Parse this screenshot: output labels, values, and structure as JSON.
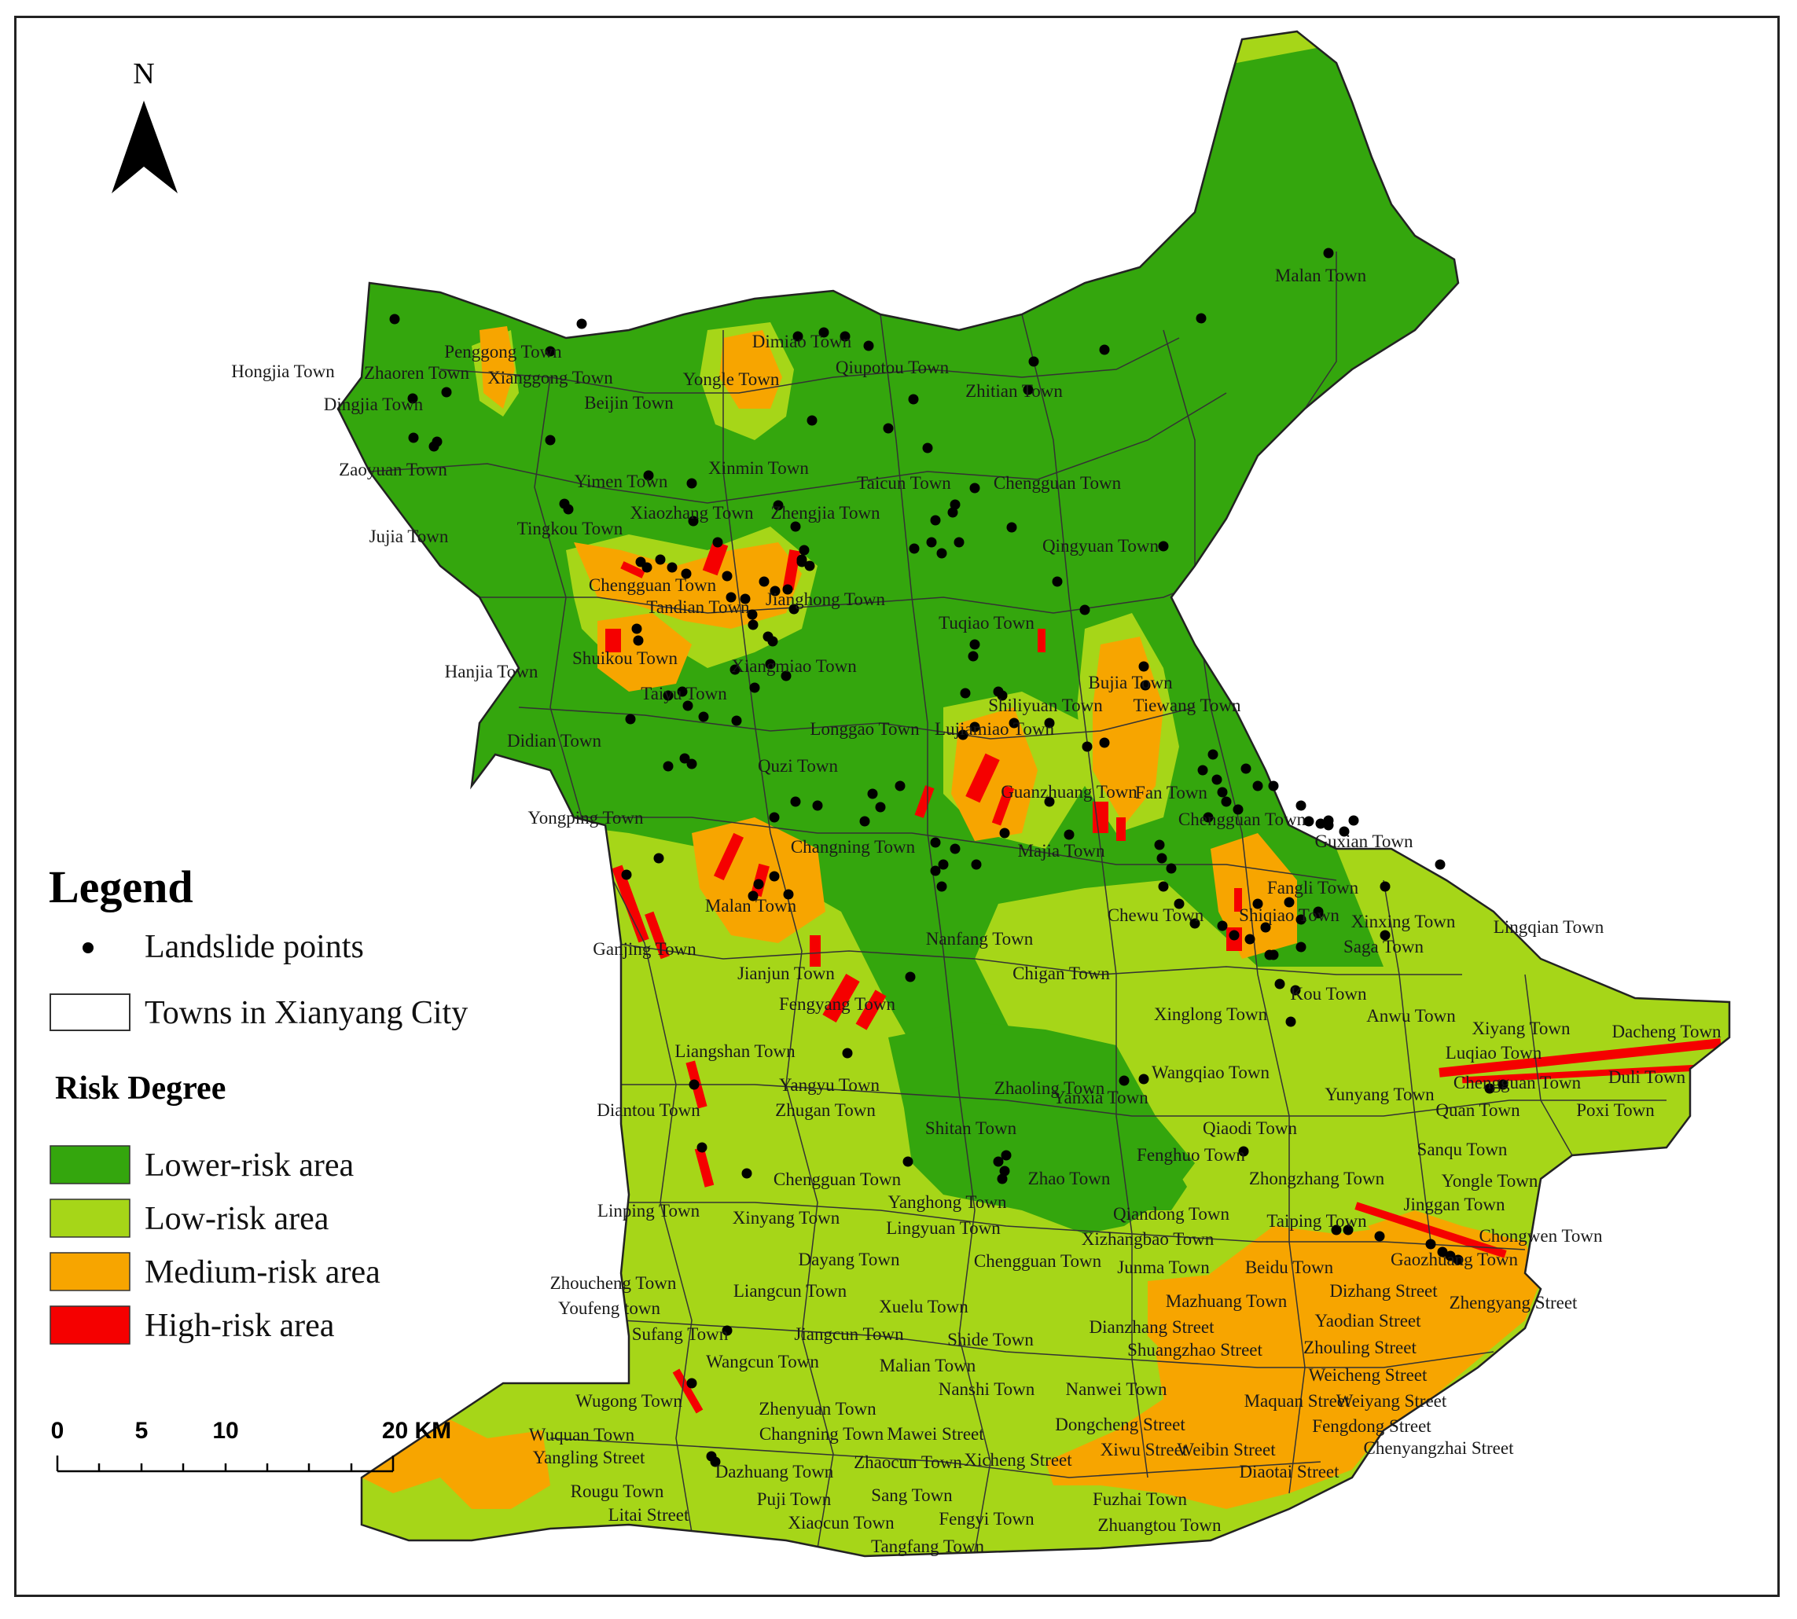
{
  "colors": {
    "lower_risk": "#34a60d",
    "low_risk": "#a6d618",
    "medium_risk": "#f7a500",
    "high_risk": "#f50000",
    "boundary": "#333333",
    "landslide": "#000000"
  },
  "north_arrow": {
    "label": "N",
    "icon": "north-arrow-icon"
  },
  "legend": {
    "title": "Legend",
    "landslide_label": "Landslide points",
    "towns_label": "Towns in Xianyang City",
    "risk_title": "Risk Degree",
    "items": [
      {
        "label": "Lower-risk area",
        "color": "#34a60d"
      },
      {
        "label": "Low-risk area",
        "color": "#a6d618"
      },
      {
        "label": "Medium-risk area",
        "color": "#f7a500"
      },
      {
        "label": "High-risk area",
        "color": "#f50000"
      }
    ]
  },
  "scale_bar": {
    "labels": [
      "0",
      "5",
      "10",
      "20 KM"
    ]
  },
  "towns": [
    "Malan Town",
    "Penggong Town",
    "Hongjia Town",
    "Zhaoren Town",
    "Xianggong Town",
    "Dingjia Town",
    "Dimiao Town",
    "Yongle Town",
    "Qiupotou Town",
    "Beijin Town",
    "Zhitian Town",
    "Zaoyuan Town",
    "Yimen Town",
    "Xinmin Town",
    "Taicun Town",
    "Chengguan Town",
    "Jujia Town",
    "Tingkou Town",
    "Xiaozhang Town",
    "Zhengjia Town",
    "Qingyuan Town",
    "Chengguan Town",
    "Jianghong Town",
    "Tandian Town",
    "Tuqiao Town",
    "Shuikou Town",
    "Xiangmiao Town",
    "Hanjia Town",
    "Taiyu Town",
    "Bujia Town",
    "Shiliyuan Town",
    "Tiewang Town",
    "Didian Town",
    "Longgao Town",
    "Lujiamiao Town",
    "Quzi Town",
    "Guanzhuang Town",
    "Fan Town",
    "Yongping Town",
    "Chengguan Town",
    "Guxian Town",
    "Changning Town",
    "Majia Town",
    "Fangli Town",
    "Malan Town",
    "Chewu Town",
    "Shiqiao Town",
    "Xinxing Town",
    "Lingqian Town",
    "Ganjing Town",
    "Nanfang Town",
    "Saga Town",
    "Jianjun Town",
    "Chigan Town",
    "Kou Town",
    "Fengyang Town",
    "Xinglong Town",
    "Anwu Town",
    "Xiyang Town",
    "Dacheng Town",
    "Liangshan Town",
    "Luqiao Town",
    "Yangyu Town",
    "Zhaoling Town",
    "Wangqiao Town",
    "Chengguan Town",
    "Duli Town",
    "Diantou Town",
    "Zhugan Town",
    "Yanxia Town",
    "Yunyang Town",
    "Quan Town",
    "Poxi Town",
    "Shitan Town",
    "Qiaodi Town",
    "Sanqu Town",
    "Fenghuo Town",
    "Chengguan Town",
    "Zhao Town",
    "Zhongzhang Town",
    "Yongle Town",
    "Linping Town",
    "Yanghong Town",
    "Qiandong Town",
    "Jinggan Town",
    "Xinyang Town",
    "Lingyuan Town",
    "Taiping Town",
    "Xizhangbao Town",
    "Chongwen Town",
    "Dayang Town",
    "Chengguan Town",
    "Junma Town",
    "Beidu Town",
    "Gaozhuang Town",
    "Zhoucheng Town",
    "Liangcun Town",
    "Youfeng town",
    "Mazhuang Town",
    "Dizhang Street",
    "Zhengyang Street",
    "Xuelu Town",
    "Sufang Town",
    "Jiangcun Town",
    "Shide Town",
    "Dianzhang Street",
    "Yaodian Street",
    "Wangcun Town",
    "Shuangzhao Street",
    "Zhouling Street",
    "Malian Town",
    "Weicheng Street",
    "Wugong Town",
    "Nanshi Town",
    "Nanwei Town",
    "Zhenyuan Town",
    "Maquan Street",
    "Weiyang Street",
    "Wuquan Town",
    "Dongcheng Street",
    "Changning Town",
    "Mawei Street",
    "Fengdong Street",
    "Yangling Street",
    "Xiwu Street",
    "Weibin Street",
    "Chenyangzhai Street",
    "Xicheng Street",
    "Zhaocun Town",
    "Dazhuang Town",
    "Diaotai Street",
    "Rougu Town",
    "Sang Town",
    "Puji Town",
    "Fuzhai Town",
    "Litai Street",
    "Xiaocun Town",
    "Fengyi Town",
    "Zhuangtou Town",
    "Tangfang Town"
  ]
}
